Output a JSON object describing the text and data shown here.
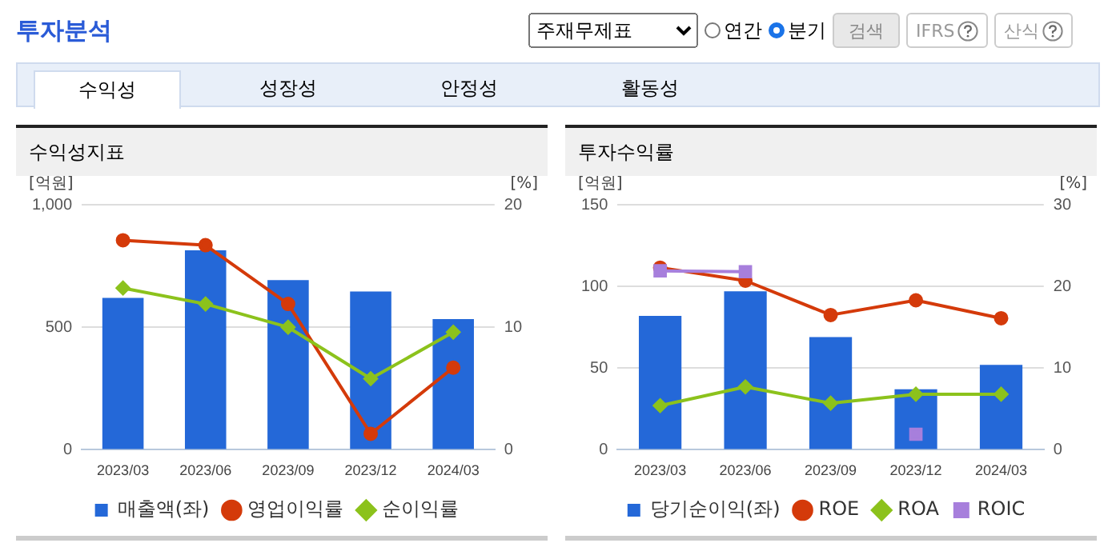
{
  "chart_data": [
    {
      "type": "bar",
      "title": "수익성지표",
      "ylabel": "[억원]",
      "y2label": "[%]",
      "categories": [
        "2023/03",
        "2023/06",
        "2023/09",
        "2023/12",
        "2024/03"
      ],
      "series": [
        {
          "name": "매출액(좌)",
          "color": "#2468d8",
          "values": [
            620,
            814,
            692,
            646,
            533
          ]
        },
        {
          "name": "영업이익률",
          "type": "line",
          "axis": "y2",
          "marker": "circle",
          "color": "#d43a0a",
          "values": [
            17.1,
            16.7,
            11.9,
            1.3,
            6.7
          ]
        },
        {
          "name": "순이익률",
          "type": "line",
          "axis": "y2",
          "marker": "diamond",
          "color": "#8cc21c",
          "values": [
            13.2,
            11.9,
            10.0,
            5.8,
            9.6
          ]
        }
      ],
      "ylim": [
        0,
        1000
      ],
      "yticks": [
        0,
        500,
        {
          "value": 1000,
          "label": "1,000"
        }
      ],
      "y2lim": [
        0,
        20
      ],
      "y2ticks": [
        0,
        10,
        20
      ],
      "grid": "y",
      "legend": "bottom",
      "annotations": [
        "투자분석",
        "주재무제표",
        "연간",
        "분기",
        "검색",
        "IFRS",
        "산식",
        "수익성",
        "성장성",
        "안정성",
        "활동성"
      ]
    },
    {
      "type": "bar",
      "title": "투자수익률",
      "ylabel": "[억원]",
      "y2label": "[%]",
      "categories": [
        "2023/03",
        "2023/06",
        "2023/09",
        "2023/12",
        "2024/03"
      ],
      "series": [
        {
          "name": "당기순이익(좌)",
          "color": "#2468d8",
          "values": [
            82,
            97,
            69,
            37,
            52
          ]
        },
        {
          "name": "ROE",
          "type": "line",
          "axis": "y2",
          "marker": "circle",
          "color": "#d43a0a",
          "values": [
            22.3,
            20.7,
            16.5,
            18.3,
            16.1
          ]
        },
        {
          "name": "ROA",
          "type": "line",
          "axis": "y2",
          "marker": "diamond",
          "color": "#8cc21c",
          "values": [
            5.4,
            7.7,
            5.7,
            6.8,
            6.8
          ]
        },
        {
          "name": "ROIC",
          "type": "line",
          "axis": "y2",
          "marker": "square",
          "color": "#a77fdc",
          "values": [
            21.9,
            21.8,
            null,
            1.9,
            null
          ]
        }
      ],
      "ylim": [
        0,
        150
      ],
      "yticks": [
        0,
        50,
        100,
        150
      ],
      "y2lim": [
        0,
        30
      ],
      "y2ticks": [
        0,
        10,
        20,
        30
      ],
      "grid": "y",
      "legend": "bottom"
    }
  ]
}
